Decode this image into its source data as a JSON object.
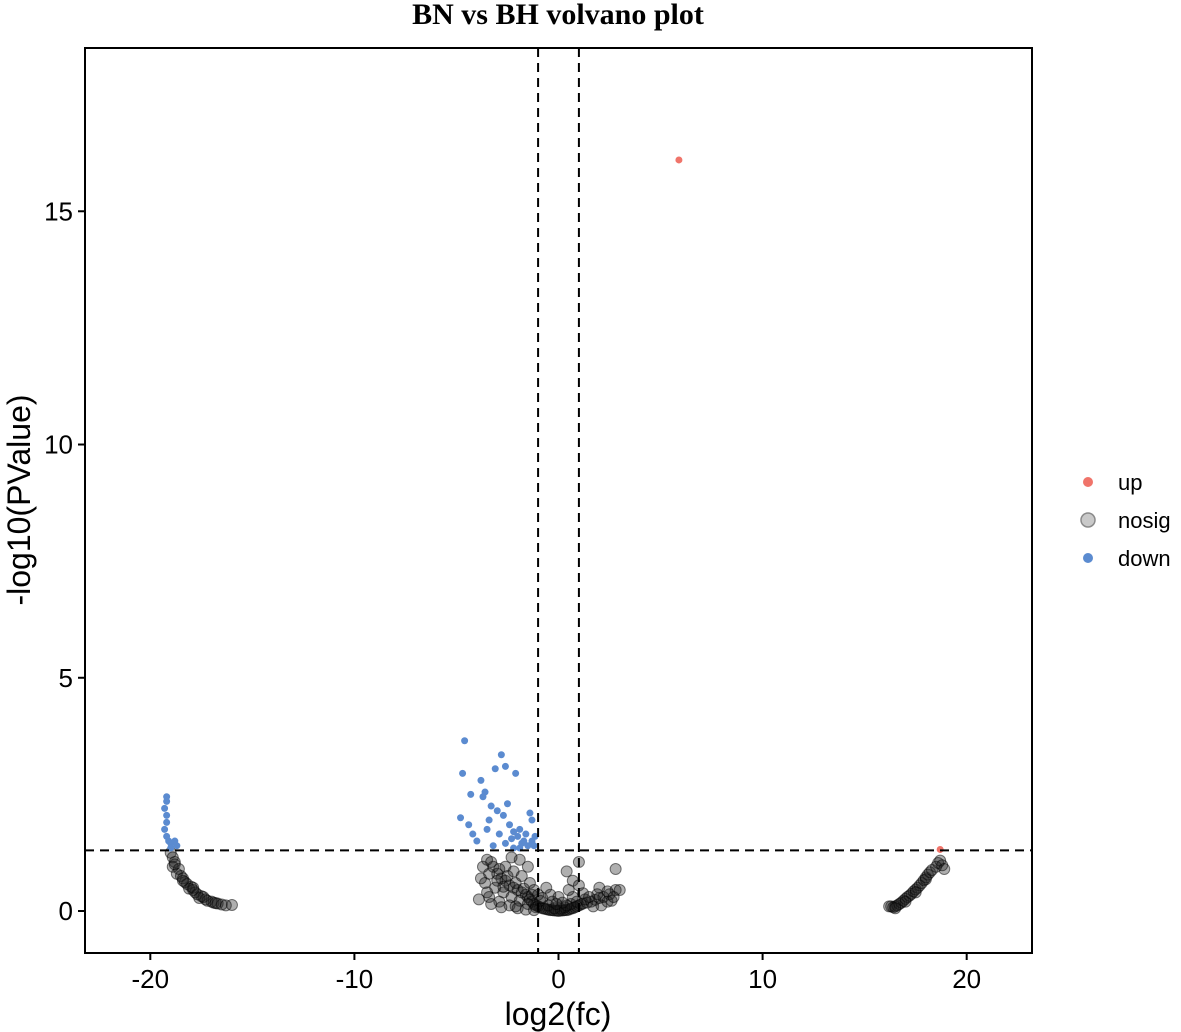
{
  "chart_data": {
    "type": "scatter",
    "title": "BN vs BH volvano plot",
    "xlabel": "log2(fc)",
    "ylabel": "-log10(PValue)",
    "xlim": [
      -23.2,
      23.2
    ],
    "ylim": [
      -0.9,
      18.5
    ],
    "x_ticks": [
      -20,
      -10,
      0,
      10,
      20
    ],
    "y_ticks": [
      0,
      5,
      10,
      15
    ],
    "grid": false,
    "legend_position": "right",
    "thresholds": {
      "vertical_x": [
        -1,
        1
      ],
      "horizontal_y": 1.3,
      "line_style": "dashed"
    },
    "series": [
      {
        "name": "up",
        "color": "#f0746a",
        "points": [
          [
            5.9,
            16.1
          ],
          [
            18.7,
            1.32
          ]
        ]
      },
      {
        "name": "nosig",
        "color": "#8c8c8c",
        "points": [
          [
            -19.0,
            1.25
          ],
          [
            -18.9,
            1.15
          ],
          [
            -18.8,
            1.05
          ],
          [
            -18.9,
            0.95
          ],
          [
            -18.6,
            0.9
          ],
          [
            -18.7,
            0.8
          ],
          [
            -18.5,
            0.75
          ],
          [
            -18.4,
            0.7
          ],
          [
            -18.3,
            0.62
          ],
          [
            -18.2,
            0.58
          ],
          [
            -18.0,
            0.52
          ],
          [
            -18.1,
            0.48
          ],
          [
            -17.9,
            0.45
          ],
          [
            -17.8,
            0.4
          ],
          [
            -17.7,
            0.36
          ],
          [
            -17.5,
            0.32
          ],
          [
            -17.6,
            0.28
          ],
          [
            -17.3,
            0.25
          ],
          [
            -17.2,
            0.22
          ],
          [
            -17.0,
            0.2
          ],
          [
            -16.9,
            0.18
          ],
          [
            -16.7,
            0.16
          ],
          [
            -16.5,
            0.14
          ],
          [
            -16.3,
            0.12
          ],
          [
            -16.0,
            0.13
          ],
          [
            -18.8,
            1.0
          ],
          [
            -18.4,
            0.65
          ],
          [
            -17.9,
            0.5
          ],
          [
            -17.4,
            0.3
          ],
          [
            -16.8,
            0.17
          ],
          [
            -3.5,
            1.1
          ],
          [
            -3.2,
            0.95
          ],
          [
            -3.0,
            0.8
          ],
          [
            -2.8,
            0.7
          ],
          [
            -2.6,
            0.65
          ],
          [
            -2.4,
            0.55
          ],
          [
            -2.2,
            0.5
          ],
          [
            -2.0,
            0.45
          ],
          [
            -1.8,
            0.4
          ],
          [
            -1.6,
            0.35
          ],
          [
            -1.5,
            0.3
          ],
          [
            -1.4,
            0.25
          ],
          [
            -1.3,
            0.2
          ],
          [
            -1.2,
            0.15
          ],
          [
            -1.1,
            0.12
          ],
          [
            -1.0,
            0.1
          ],
          [
            -0.9,
            0.08
          ],
          [
            -0.8,
            0.06
          ],
          [
            -0.7,
            0.05
          ],
          [
            -0.6,
            0.04
          ],
          [
            -0.5,
            0.03
          ],
          [
            -0.4,
            0.02
          ],
          [
            -0.3,
            0.02
          ],
          [
            -0.2,
            0.01
          ],
          [
            -0.1,
            0.01
          ],
          [
            0.0,
            0.0
          ],
          [
            0.1,
            0.01
          ],
          [
            0.2,
            0.01
          ],
          [
            0.3,
            0.02
          ],
          [
            0.4,
            0.02
          ],
          [
            0.5,
            0.03
          ],
          [
            0.6,
            0.05
          ],
          [
            0.7,
            0.06
          ],
          [
            0.8,
            0.08
          ],
          [
            0.9,
            0.1
          ],
          [
            1.0,
            0.12
          ],
          [
            1.1,
            0.14
          ],
          [
            1.2,
            0.16
          ],
          [
            1.4,
            0.18
          ],
          [
            1.6,
            0.2
          ],
          [
            1.8,
            0.24
          ],
          [
            2.0,
            0.28
          ],
          [
            2.2,
            0.3
          ],
          [
            2.5,
            0.36
          ],
          [
            2.8,
            0.45
          ],
          [
            -3.3,
            1.05
          ],
          [
            -2.9,
            0.9
          ],
          [
            -2.5,
            0.75
          ],
          [
            -2.1,
            0.6
          ],
          [
            -1.7,
            0.48
          ],
          [
            -1.3,
            0.35
          ],
          [
            -0.9,
            0.22
          ],
          [
            -0.5,
            0.12
          ],
          [
            -3.6,
            0.6
          ],
          [
            -3.1,
            0.5
          ],
          [
            -2.7,
            0.4
          ],
          [
            -2.3,
            0.3
          ],
          [
            -1.9,
            0.22
          ],
          [
            -1.5,
            0.15
          ],
          [
            -1.1,
            0.08
          ],
          [
            -3.4,
            0.3
          ],
          [
            -2.9,
            0.2
          ],
          [
            -2.4,
            0.12
          ],
          [
            -2.0,
            0.06
          ],
          [
            -1.6,
            0.03
          ],
          [
            -1.2,
            0.02
          ],
          [
            -2.6,
            0.95
          ],
          [
            -2.2,
            0.85
          ],
          [
            -1.8,
            0.75
          ],
          [
            -1.4,
            0.6
          ],
          [
            -1.2,
            0.45
          ],
          [
            -1.0,
            0.35
          ],
          [
            -0.8,
            0.28
          ],
          [
            -1.9,
            1.1
          ],
          [
            -1.5,
            0.95
          ],
          [
            -2.3,
            1.15
          ],
          [
            -3.4,
            0.8
          ],
          [
            -3.0,
            0.65
          ],
          [
            -2.7,
            0.52
          ],
          [
            -3.3,
            0.15
          ],
          [
            -2.8,
            0.08
          ],
          [
            -2.1,
            0.1
          ],
          [
            0.6,
            0.15
          ],
          [
            0.9,
            0.2
          ],
          [
            1.3,
            0.25
          ],
          [
            1.7,
            0.1
          ],
          [
            2.1,
            0.12
          ],
          [
            2.4,
            0.2
          ],
          [
            0.3,
            0.08
          ],
          [
            0.1,
            0.05
          ],
          [
            -0.2,
            0.06
          ],
          [
            0.4,
            0.12
          ],
          [
            0.7,
            0.3
          ],
          [
            0.4,
            0.85
          ],
          [
            0.7,
            0.65
          ],
          [
            1.0,
            0.55
          ],
          [
            0.5,
            0.45
          ],
          [
            1.2,
            0.38
          ],
          [
            1.5,
            0.3
          ],
          [
            1.0,
            1.05
          ],
          [
            2.8,
            0.9
          ],
          [
            2.0,
            0.5
          ],
          [
            2.4,
            0.42
          ],
          [
            1.9,
            0.36
          ],
          [
            2.6,
            0.22
          ],
          [
            -0.4,
            0.35
          ],
          [
            -0.6,
            0.5
          ],
          [
            -0.3,
            0.2
          ],
          [
            0.0,
            0.3
          ],
          [
            0.2,
            0.18
          ],
          [
            -0.1,
            0.15
          ],
          [
            3.0,
            0.45
          ],
          [
            2.7,
            0.3
          ],
          [
            -3.7,
            0.95
          ],
          [
            -3.8,
            0.7
          ],
          [
            -3.5,
            0.4
          ],
          [
            -3.9,
            0.25
          ],
          [
            16.2,
            0.1
          ],
          [
            16.3,
            0.1
          ],
          [
            16.4,
            0.08
          ],
          [
            16.5,
            0.1
          ],
          [
            16.6,
            0.12
          ],
          [
            16.7,
            0.15
          ],
          [
            16.8,
            0.18
          ],
          [
            16.9,
            0.22
          ],
          [
            17.0,
            0.26
          ],
          [
            17.1,
            0.3
          ],
          [
            17.2,
            0.33
          ],
          [
            17.3,
            0.37
          ],
          [
            17.4,
            0.42
          ],
          [
            17.5,
            0.46
          ],
          [
            17.6,
            0.5
          ],
          [
            17.7,
            0.55
          ],
          [
            17.8,
            0.6
          ],
          [
            17.9,
            0.66
          ],
          [
            18.0,
            0.72
          ],
          [
            18.1,
            0.78
          ],
          [
            18.2,
            0.83
          ],
          [
            18.3,
            0.88
          ],
          [
            18.5,
            0.95
          ],
          [
            18.6,
            1.03
          ],
          [
            18.7,
            1.08
          ],
          [
            18.8,
            0.98
          ],
          [
            18.9,
            0.9
          ],
          [
            16.5,
            0.06
          ],
          [
            17.0,
            0.2
          ],
          [
            17.5,
            0.4
          ],
          [
            18.0,
            0.68
          ]
        ]
      },
      {
        "name": "down",
        "color": "#5b8bd0",
        "points": [
          [
            -19.2,
            2.45
          ],
          [
            -19.2,
            2.35
          ],
          [
            -19.3,
            2.2
          ],
          [
            -19.2,
            2.05
          ],
          [
            -19.2,
            1.9
          ],
          [
            -19.3,
            1.75
          ],
          [
            -19.2,
            1.6
          ],
          [
            -19.1,
            1.5
          ],
          [
            -19.0,
            1.45
          ],
          [
            -18.8,
            1.5
          ],
          [
            -18.7,
            1.4
          ],
          [
            -19.0,
            1.35
          ],
          [
            -4.6,
            3.65
          ],
          [
            -4.7,
            2.95
          ],
          [
            -4.8,
            2.0
          ],
          [
            -4.4,
            1.85
          ],
          [
            -4.3,
            2.5
          ],
          [
            -4.2,
            1.65
          ],
          [
            -4.0,
            1.5
          ],
          [
            -3.8,
            2.8
          ],
          [
            -3.7,
            2.45
          ],
          [
            -3.6,
            2.55
          ],
          [
            -3.5,
            1.75
          ],
          [
            -3.4,
            1.95
          ],
          [
            -3.3,
            2.25
          ],
          [
            -3.1,
            3.05
          ],
          [
            -3.0,
            2.15
          ],
          [
            -2.9,
            1.65
          ],
          [
            -2.8,
            3.35
          ],
          [
            -2.7,
            2.05
          ],
          [
            -2.6,
            3.1
          ],
          [
            -2.5,
            2.3
          ],
          [
            -2.4,
            1.85
          ],
          [
            -2.3,
            1.55
          ],
          [
            -2.2,
            1.7
          ],
          [
            -2.1,
            2.95
          ],
          [
            -2.0,
            1.6
          ],
          [
            -1.9,
            1.75
          ],
          [
            -1.8,
            1.45
          ],
          [
            -1.7,
            1.5
          ],
          [
            -1.6,
            1.65
          ],
          [
            -1.5,
            1.4
          ],
          [
            -1.4,
            2.1
          ],
          [
            -1.3,
            1.95
          ],
          [
            -1.2,
            1.4
          ],
          [
            -1.15,
            1.6
          ],
          [
            -1.3,
            1.5
          ],
          [
            -3.2,
            1.4
          ],
          [
            -2.6,
            1.45
          ],
          [
            -2.2,
            1.35
          ],
          [
            -1.9,
            1.35
          ]
        ]
      }
    ]
  }
}
